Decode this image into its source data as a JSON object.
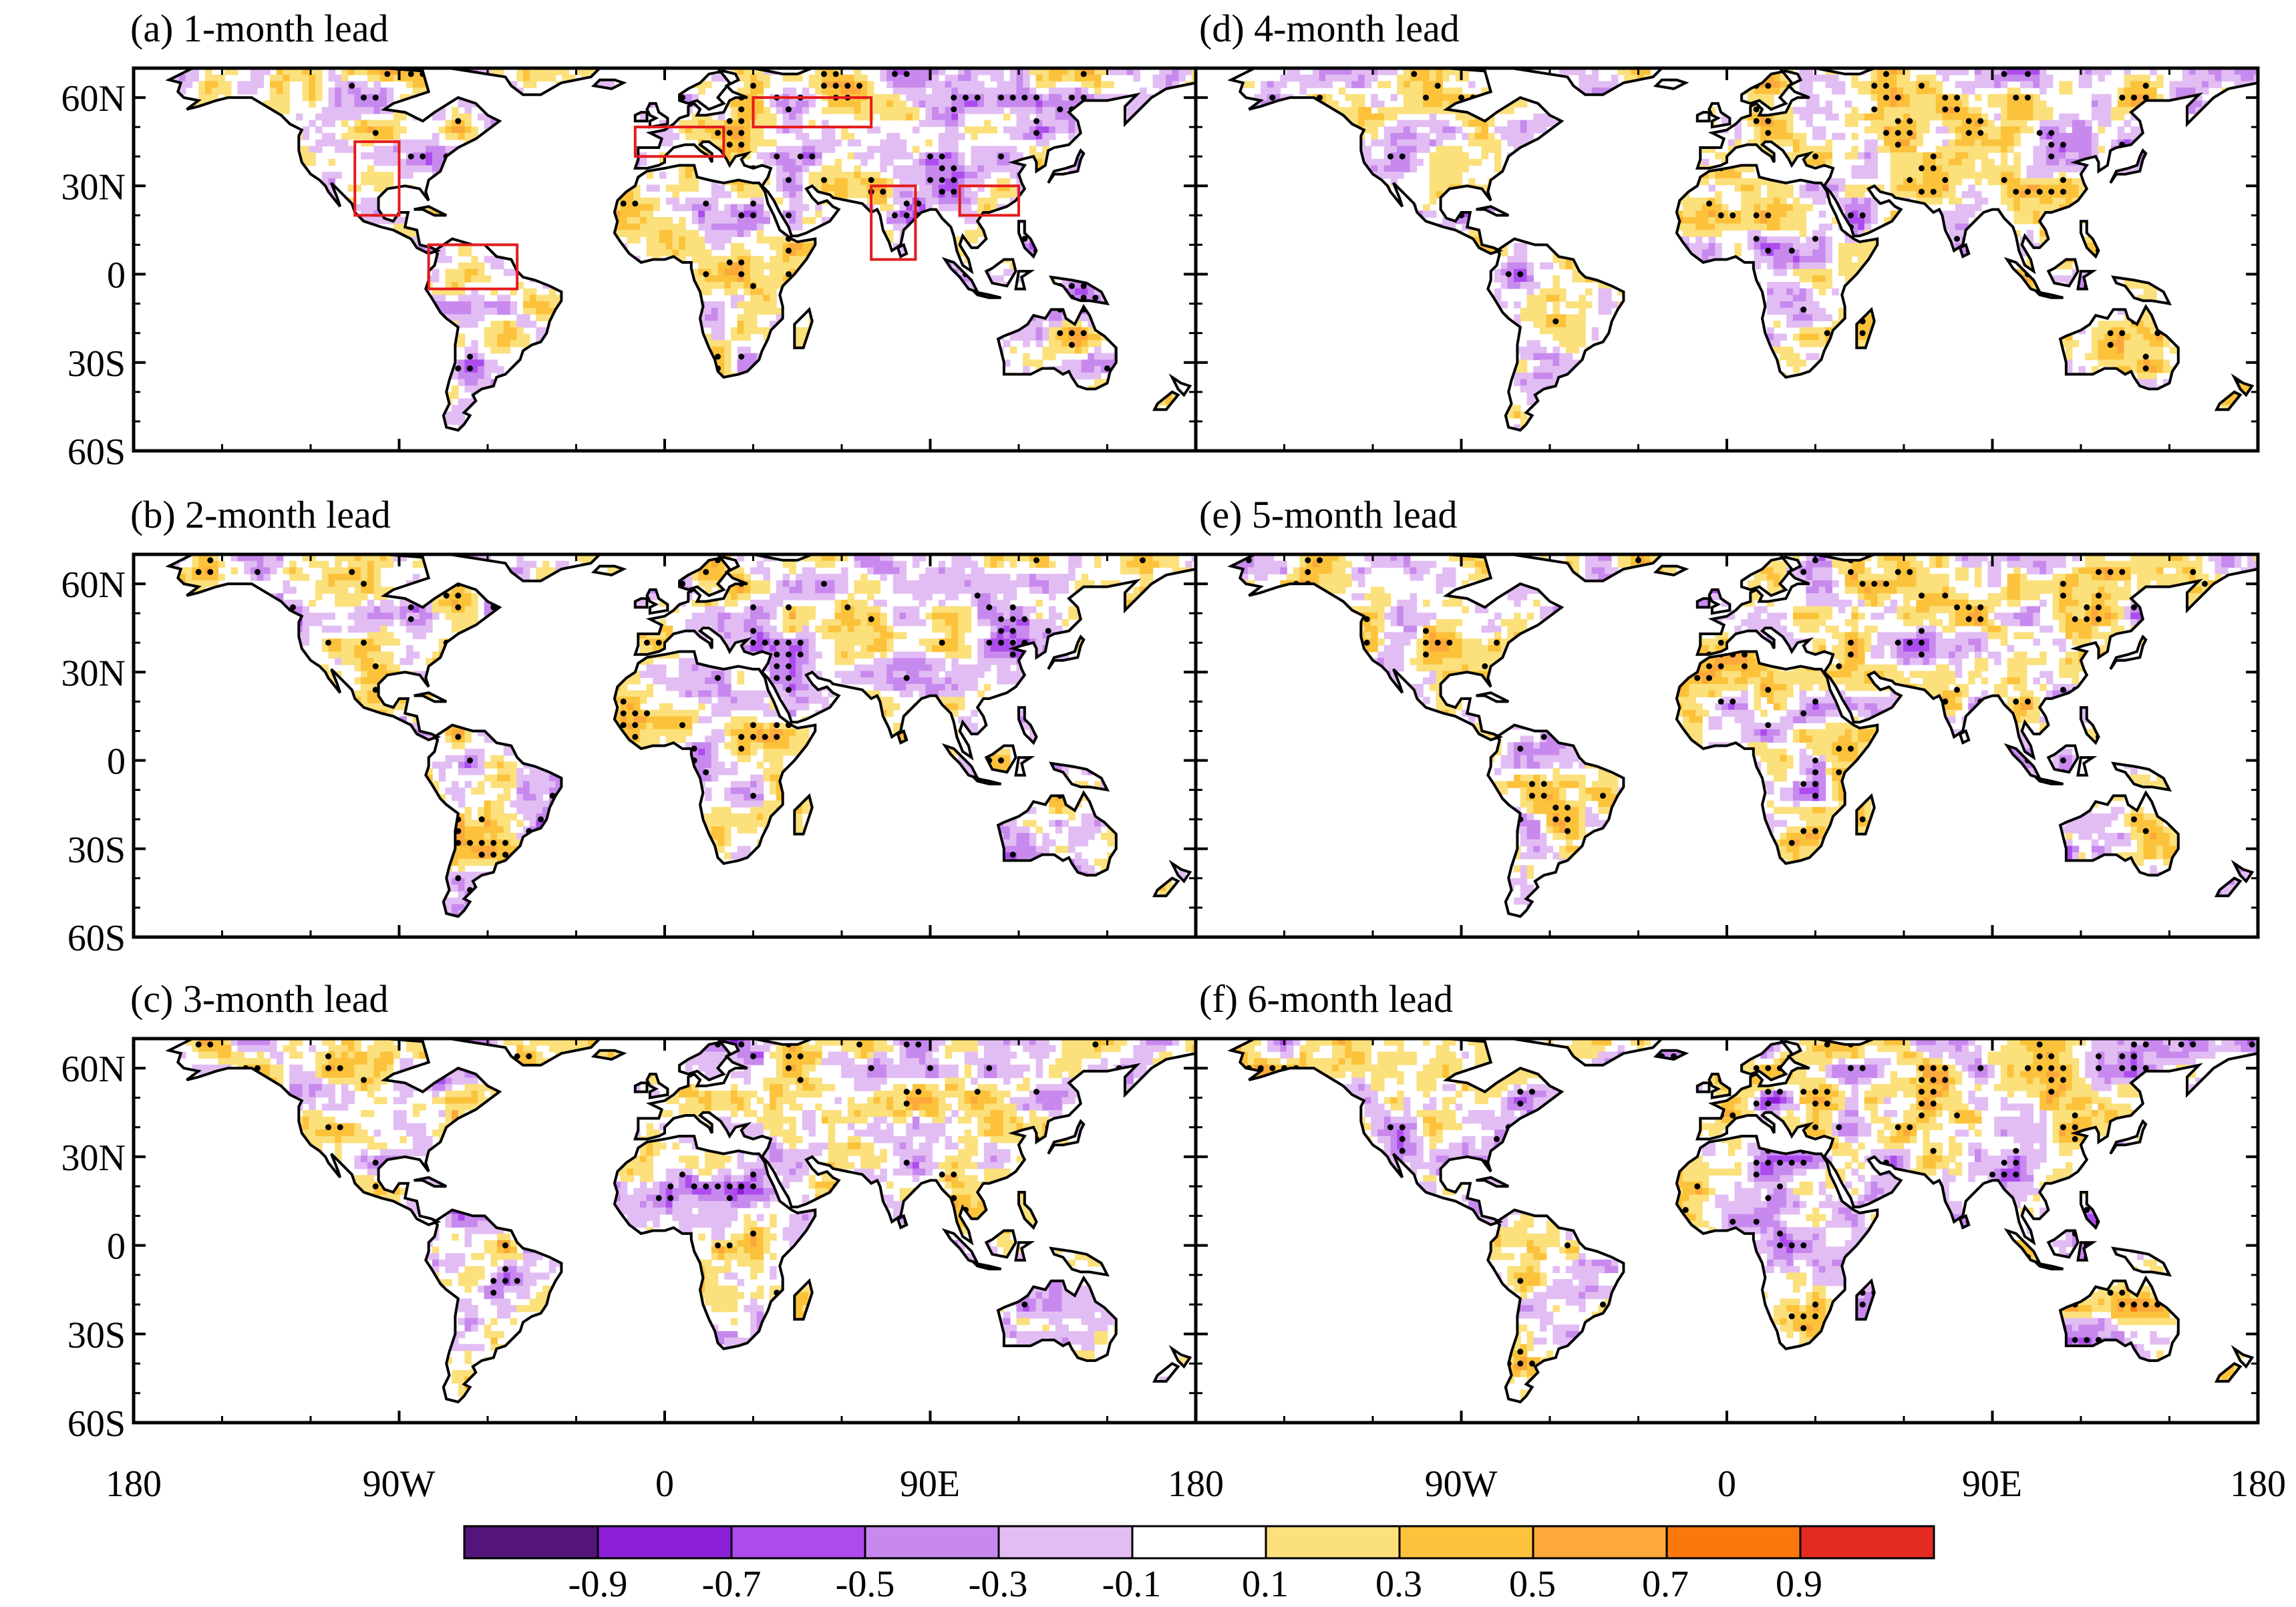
{
  "chart_data": {
    "type": "heatmap",
    "description_kind": "global map panels of correlation skill",
    "panels": [
      {
        "label": "(a) 1-month lead",
        "has_region_boxes": true
      },
      {
        "label": "(b) 2-month lead",
        "has_region_boxes": false
      },
      {
        "label": "(c) 3-month lead",
        "has_region_boxes": false
      },
      {
        "label": "(d) 4-month lead",
        "has_region_boxes": false
      },
      {
        "label": "(e) 5-month lead",
        "has_region_boxes": false
      },
      {
        "label": "(f) 6-month lead",
        "has_region_boxes": false
      }
    ],
    "lon_range": [
      -180,
      180
    ],
    "lat_range": [
      -60,
      70
    ],
    "x_ticks": [
      {
        "value": -180,
        "label": "180"
      },
      {
        "value": -90,
        "label": "90W"
      },
      {
        "value": 0,
        "label": "0"
      },
      {
        "value": 90,
        "label": "90E"
      },
      {
        "value": 180,
        "label": "180"
      }
    ],
    "y_ticks": [
      {
        "value": 60,
        "label": "60N"
      },
      {
        "value": 30,
        "label": "30N"
      },
      {
        "value": 0,
        "label": "0"
      },
      {
        "value": -30,
        "label": "30S"
      },
      {
        "value": -60,
        "label": "60S"
      }
    ],
    "colorbar": {
      "levels": [
        -0.9,
        -0.7,
        -0.5,
        -0.3,
        -0.1,
        0.1,
        0.3,
        0.5,
        0.7,
        0.9
      ],
      "labels": [
        "-0.9",
        "-0.7",
        "-0.5",
        "-0.3",
        "-0.1",
        "0.1",
        "0.3",
        "0.5",
        "0.7",
        "0.9"
      ],
      "colors": [
        "#54157a",
        "#8d1fd9",
        "#ad4cee",
        "#c889ee",
        "#e2bdf3",
        "#ffffff",
        "#fbe07c",
        "#fcc23b",
        "#fca83a",
        "#fb780d",
        "#e32b22"
      ]
    },
    "region_boxes_panel_a": [
      {
        "lon": [
          -105,
          -90
        ],
        "lat": [
          20,
          45
        ]
      },
      {
        "lon": [
          -80,
          -50
        ],
        "lat": [
          -5,
          10
        ]
      },
      {
        "lon": [
          -10,
          20
        ],
        "lat": [
          40,
          50
        ]
      },
      {
        "lon": [
          30,
          70
        ],
        "lat": [
          50,
          60
        ]
      },
      {
        "lon": [
          70,
          85
        ],
        "lat": [
          5,
          30
        ]
      },
      {
        "lon": [
          100,
          120
        ],
        "lat": [
          20,
          30
        ]
      }
    ]
  }
}
